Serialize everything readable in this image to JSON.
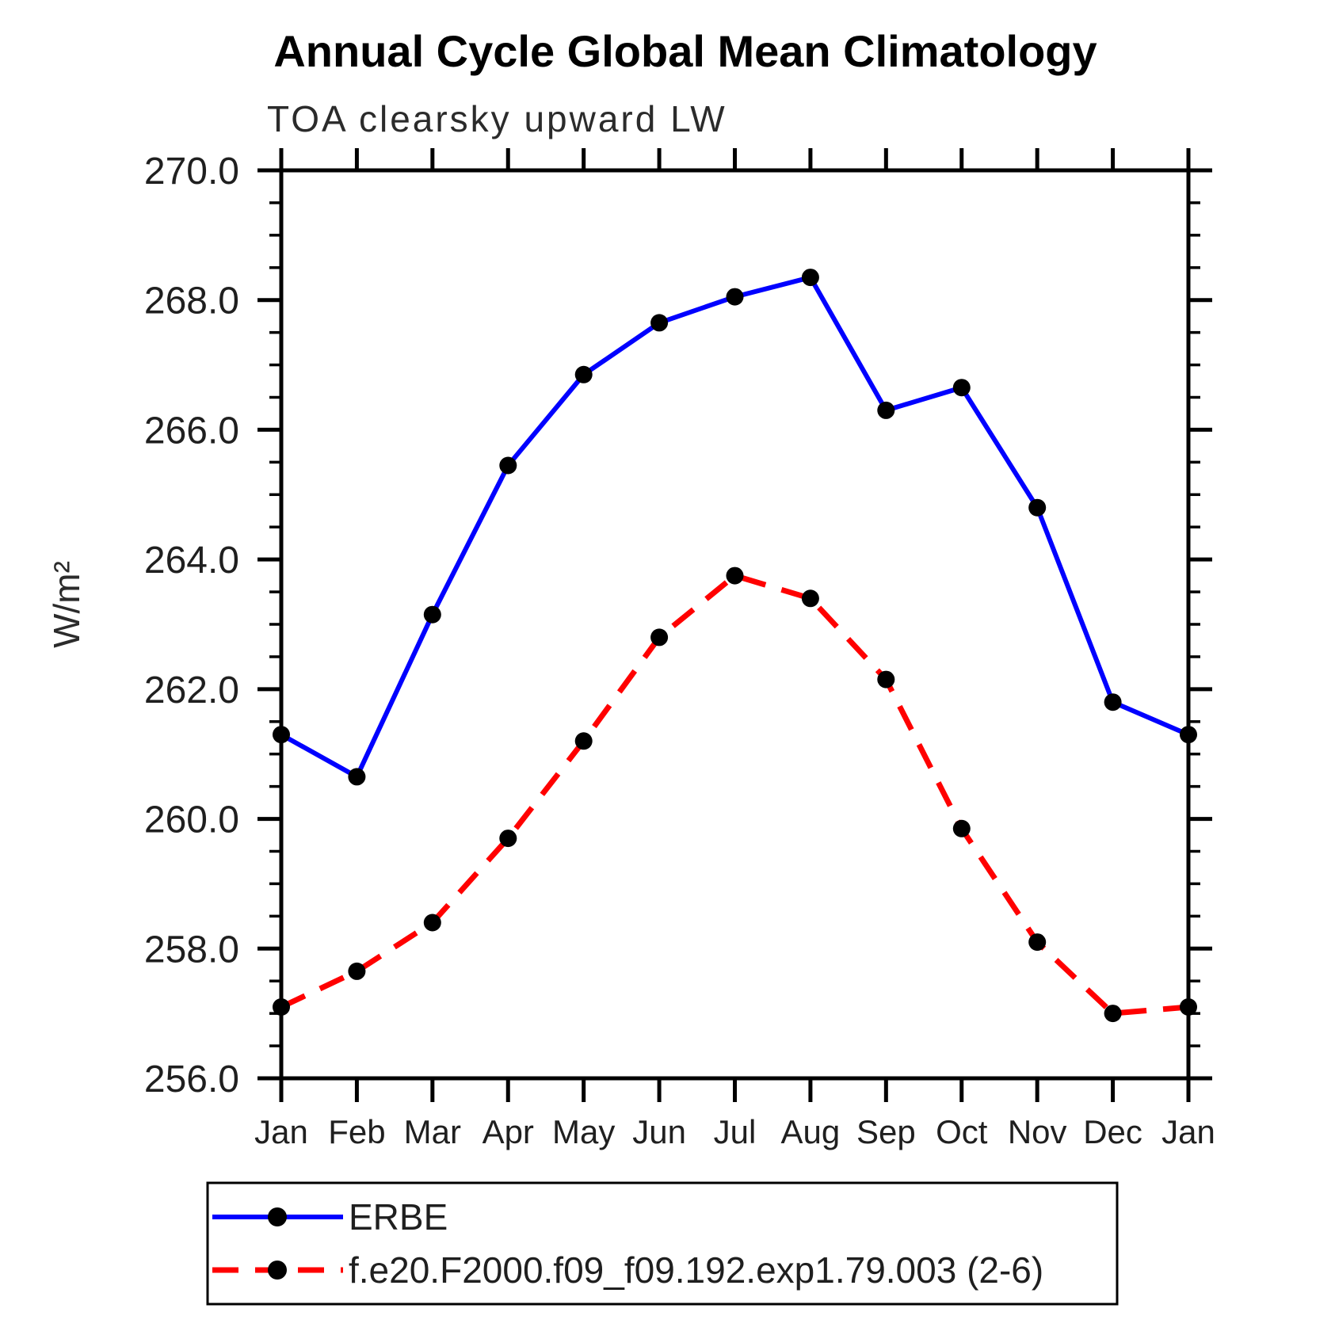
{
  "title": "Annual Cycle Global Mean Climatology",
  "subtitle": "TOA clearsky upward LW",
  "chart_data": {
    "type": "line",
    "title": "Annual Cycle Global Mean Climatology",
    "subtitle": "TOA clearsky upward LW",
    "xlabel": "",
    "ylabel": "W/m²",
    "categories": [
      "Jan",
      "Feb",
      "Mar",
      "Apr",
      "May",
      "Jun",
      "Jul",
      "Aug",
      "Sep",
      "Oct",
      "Nov",
      "Dec",
      "Jan"
    ],
    "ylim": [
      256.0,
      270.0
    ],
    "y_major_step": 2.0,
    "y_minor_step": 0.5,
    "y_tick_labels": [
      "256.0",
      "258.0",
      "260.0",
      "262.0",
      "264.0",
      "266.0",
      "268.0",
      "270.0"
    ],
    "grid": false,
    "legend_position": "bottom-left-box",
    "frame_color": "#000000",
    "series": [
      {
        "name": "ERBE",
        "color": "#0000ff",
        "line_style": "solid",
        "marker": "circle",
        "marker_color": "#000000",
        "values": [
          261.3,
          260.65,
          263.15,
          265.45,
          266.85,
          267.65,
          268.05,
          268.35,
          266.3,
          266.65,
          264.8,
          261.8,
          261.3
        ]
      },
      {
        "name": "f.e20.F2000.f09_f09.192.exp1.79.003 (2-6)",
        "color": "#ff0000",
        "line_style": "dashed",
        "marker": "circle",
        "marker_color": "#000000",
        "values": [
          257.1,
          257.65,
          258.4,
          259.7,
          261.2,
          262.8,
          263.75,
          263.4,
          262.15,
          259.85,
          258.1,
          257.0,
          257.1
        ]
      }
    ]
  }
}
